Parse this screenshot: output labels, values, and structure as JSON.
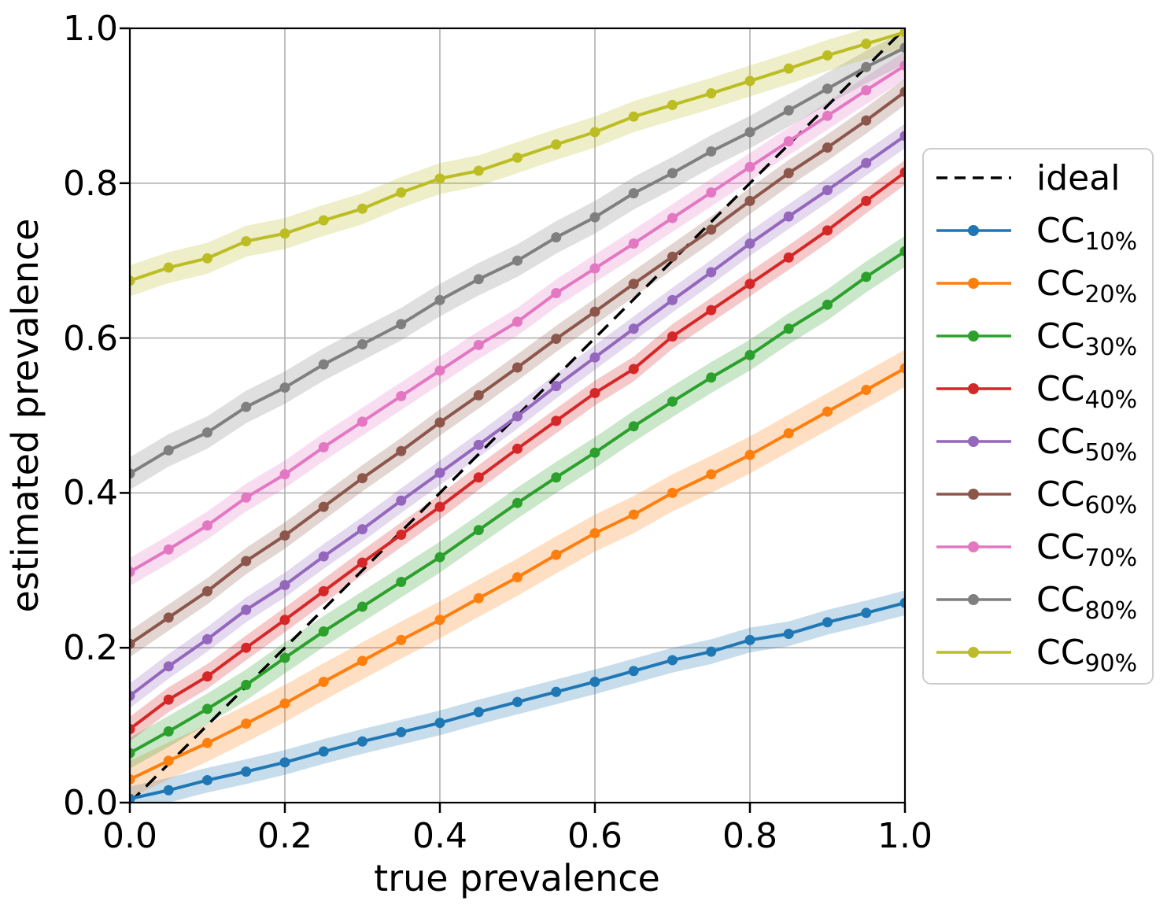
{
  "figure": {
    "background": "#ffffff",
    "grid_color": "#b0b0b0",
    "spine_color": "#000000",
    "legend_border_color": "#cccccc",
    "legend_background": "#ffffff"
  },
  "chart_data": {
    "type": "line",
    "title": "",
    "xlabel": "true prevalence",
    "ylabel": "estimated prevalence",
    "xlim": [
      0.0,
      1.0
    ],
    "ylim": [
      0.0,
      1.0
    ],
    "grid": true,
    "legend_position": "right-outside",
    "xticks": [
      0.0,
      0.2,
      0.4,
      0.6,
      0.8,
      1.0
    ],
    "yticks": [
      0.0,
      0.2,
      0.4,
      0.6,
      0.8,
      1.0
    ],
    "xtick_labels": [
      "0.0",
      "0.2",
      "0.4",
      "0.6",
      "0.8",
      "1.0"
    ],
    "ytick_labels": [
      "0.0",
      "0.2",
      "0.4",
      "0.6",
      "0.8",
      "1.0"
    ],
    "reference_line": {
      "label": "ideal",
      "color": "#000000",
      "style": "dashed",
      "x": [
        0.0,
        1.0
      ],
      "y": [
        0.0,
        1.0
      ]
    },
    "x": [
      0.0,
      0.05,
      0.1,
      0.15,
      0.2,
      0.25,
      0.3,
      0.35,
      0.4,
      0.45,
      0.5,
      0.55,
      0.6,
      0.65,
      0.7,
      0.75,
      0.8,
      0.85,
      0.9,
      0.95,
      1.0
    ],
    "series": [
      {
        "name": "CC_10%",
        "label_base": "CC",
        "label_sub": "10%",
        "color": "#1f77b4",
        "band_halfwidth": 0.016,
        "values": [
          0.005,
          0.016,
          0.029,
          0.04,
          0.052,
          0.066,
          0.079,
          0.091,
          0.103,
          0.117,
          0.13,
          0.143,
          0.156,
          0.17,
          0.184,
          0.195,
          0.21,
          0.218,
          0.233,
          0.245,
          0.258
        ]
      },
      {
        "name": "CC_20%",
        "label_base": "CC",
        "label_sub": "20%",
        "color": "#ff7f0e",
        "band_halfwidth": 0.024,
        "values": [
          0.03,
          0.054,
          0.077,
          0.102,
          0.128,
          0.156,
          0.183,
          0.21,
          0.236,
          0.264,
          0.291,
          0.32,
          0.348,
          0.372,
          0.4,
          0.424,
          0.449,
          0.477,
          0.505,
          0.533,
          0.561
        ]
      },
      {
        "name": "CC_30%",
        "label_base": "CC",
        "label_sub": "30%",
        "color": "#2ca02c",
        "band_halfwidth": 0.02,
        "values": [
          0.064,
          0.092,
          0.121,
          0.152,
          0.187,
          0.221,
          0.253,
          0.285,
          0.317,
          0.352,
          0.387,
          0.42,
          0.452,
          0.486,
          0.518,
          0.549,
          0.578,
          0.612,
          0.643,
          0.679,
          0.712
        ]
      },
      {
        "name": "CC_40%",
        "label_base": "CC",
        "label_sub": "40%",
        "color": "#d62728",
        "band_halfwidth": 0.016,
        "values": [
          0.095,
          0.133,
          0.163,
          0.2,
          0.236,
          0.273,
          0.31,
          0.346,
          0.382,
          0.42,
          0.457,
          0.493,
          0.529,
          0.56,
          0.602,
          0.636,
          0.67,
          0.704,
          0.739,
          0.777,
          0.814
        ]
      },
      {
        "name": "CC_50%",
        "label_base": "CC",
        "label_sub": "50%",
        "color": "#9467bd",
        "band_halfwidth": 0.016,
        "values": [
          0.138,
          0.176,
          0.211,
          0.249,
          0.281,
          0.318,
          0.353,
          0.39,
          0.426,
          0.462,
          0.499,
          0.538,
          0.575,
          0.612,
          0.649,
          0.685,
          0.722,
          0.757,
          0.791,
          0.826,
          0.861
        ]
      },
      {
        "name": "CC_60%",
        "label_base": "CC",
        "label_sub": "60%",
        "color": "#8c564b",
        "band_halfwidth": 0.017,
        "values": [
          0.205,
          0.239,
          0.273,
          0.312,
          0.345,
          0.382,
          0.419,
          0.454,
          0.491,
          0.526,
          0.562,
          0.599,
          0.634,
          0.67,
          0.705,
          0.74,
          0.777,
          0.813,
          0.846,
          0.881,
          0.918
        ]
      },
      {
        "name": "CC_70%",
        "label_base": "CC",
        "label_sub": "70%",
        "color": "#e377c2",
        "band_halfwidth": 0.018,
        "values": [
          0.298,
          0.327,
          0.358,
          0.394,
          0.424,
          0.459,
          0.492,
          0.525,
          0.558,
          0.591,
          0.621,
          0.658,
          0.69,
          0.722,
          0.755,
          0.788,
          0.821,
          0.854,
          0.887,
          0.92,
          0.952
        ]
      },
      {
        "name": "CC_80%",
        "label_base": "CC",
        "label_sub": "80%",
        "color": "#7f7f7f",
        "band_halfwidth": 0.021,
        "values": [
          0.425,
          0.455,
          0.478,
          0.511,
          0.536,
          0.566,
          0.592,
          0.618,
          0.649,
          0.676,
          0.7,
          0.73,
          0.756,
          0.787,
          0.813,
          0.841,
          0.866,
          0.894,
          0.922,
          0.95,
          0.975
        ]
      },
      {
        "name": "CC_90%",
        "label_base": "CC",
        "label_sub": "90%",
        "color": "#bcbd22",
        "band_halfwidth": 0.02,
        "values": [
          0.674,
          0.691,
          0.703,
          0.725,
          0.735,
          0.752,
          0.767,
          0.788,
          0.806,
          0.816,
          0.833,
          0.85,
          0.866,
          0.886,
          0.901,
          0.916,
          0.932,
          0.948,
          0.965,
          0.98,
          0.995
        ]
      }
    ]
  }
}
